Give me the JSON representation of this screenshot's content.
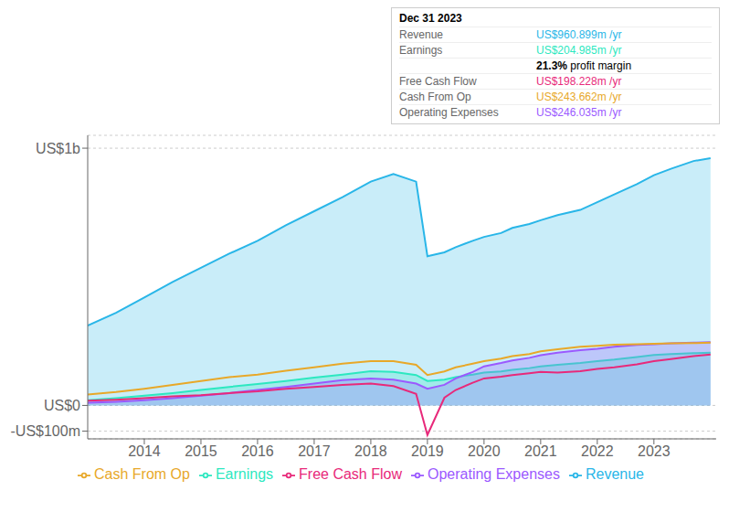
{
  "chart_data": {
    "type": "area",
    "x": [
      2013.0,
      2013.5,
      2014.0,
      2014.5,
      2015.0,
      2015.5,
      2016.0,
      2016.5,
      2017.0,
      2017.5,
      2018.0,
      2018.4,
      2018.8,
      2019.0,
      2019.3,
      2019.5,
      2019.8,
      2020.0,
      2020.3,
      2020.5,
      2020.8,
      2021.0,
      2021.3,
      2021.7,
      2022.0,
      2022.3,
      2022.7,
      2023.0,
      2023.3,
      2023.7,
      2024.0
    ],
    "series": [
      {
        "name": "Revenue",
        "type": "area",
        "color": "#29b6e8",
        "values": [
          310,
          360,
          420,
          480,
          535,
          590,
          640,
          700,
          755,
          810,
          870,
          900,
          870,
          580,
          595,
          615,
          640,
          655,
          670,
          690,
          705,
          720,
          740,
          760,
          790,
          820,
          860,
          895,
          920,
          950,
          961
        ]
      },
      {
        "name": "Earnings",
        "type": "area",
        "color": "#2de8c0",
        "values": [
          20,
          28,
          38,
          48,
          60,
          72,
          83,
          95,
          108,
          120,
          133,
          130,
          118,
          95,
          100,
          110,
          120,
          128,
          132,
          138,
          145,
          152,
          158,
          165,
          172,
          178,
          188,
          196,
          200,
          203,
          205
        ]
      },
      {
        "name": "Free Cash Flow",
        "type": "line",
        "color": "#e8297a",
        "values": [
          18,
          22,
          28,
          35,
          40,
          48,
          55,
          65,
          72,
          80,
          85,
          75,
          45,
          -115,
          30,
          60,
          88,
          105,
          112,
          118,
          125,
          130,
          128,
          133,
          142,
          148,
          160,
          172,
          180,
          192,
          198
        ]
      },
      {
        "name": "Cash From Op",
        "type": "line",
        "color": "#e8a829",
        "values": [
          42,
          52,
          65,
          80,
          95,
          110,
          120,
          135,
          148,
          162,
          172,
          172,
          158,
          118,
          132,
          148,
          162,
          172,
          182,
          192,
          200,
          210,
          218,
          228,
          232,
          236,
          238,
          240,
          241,
          242,
          244
        ]
      },
      {
        "name": "Operating Expenses",
        "type": "area",
        "color": "#9b59ff",
        "values": [
          10,
          14,
          20,
          28,
          38,
          48,
          60,
          72,
          85,
          98,
          105,
          100,
          85,
          65,
          80,
          105,
          130,
          152,
          165,
          175,
          185,
          195,
          205,
          215,
          220,
          228,
          235,
          238,
          241,
          244,
          246
        ]
      }
    ],
    "xlim": [
      2013.0,
      2024.1
    ],
    "xticks": [
      2014,
      2015,
      2016,
      2017,
      2018,
      2019,
      2020,
      2021,
      2022,
      2023
    ],
    "ylim": [
      -130,
      1050
    ],
    "yticks": [
      {
        "value": -100,
        "label": "-US$100m"
      },
      {
        "value": 0,
        "label": "US$0"
      },
      {
        "value": 1000,
        "label": "US$1b"
      }
    ],
    "grid": true,
    "legend": "bottom",
    "annotations": [
      {
        "title": "Dec 31 2023",
        "rows": [
          {
            "label": "Revenue",
            "value": "US$960.899m /yr",
            "color": "#29b6e8"
          },
          {
            "label": "Earnings",
            "value": "US$204.985m /yr",
            "color": "#2de8c0"
          },
          {
            "value": "21.3%",
            "text": " profit margin"
          },
          {
            "label": "Free Cash Flow",
            "value": "US$198.228m /yr",
            "color": "#e8297a"
          },
          {
            "label": "Cash From Op",
            "value": "US$243.662m /yr",
            "color": "#e8a829"
          },
          {
            "label": "Operating Expenses",
            "value": "US$246.035m /yr",
            "color": "#9b59ff"
          }
        ]
      }
    ]
  }
}
